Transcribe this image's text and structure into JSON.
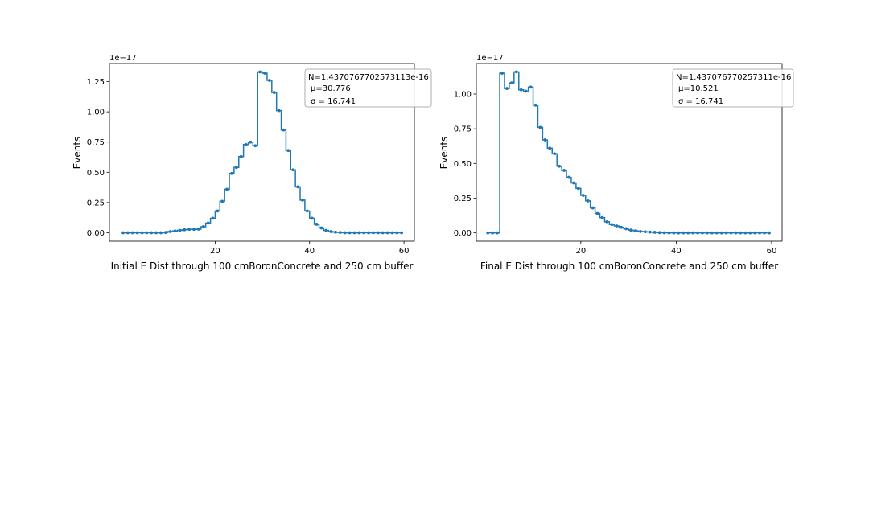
{
  "colors": {
    "series": "#1f77b4",
    "axes": "#000000",
    "background": "#ffffff",
    "legend_border": "#999999"
  },
  "chart_data": [
    {
      "type": "line",
      "title": "",
      "xlabel": "Initial E Dist through 100 cmBoronConcrete and 250 cm buffer",
      "ylabel": "Events",
      "offset_text": "1e−17",
      "xlim": [
        -2.4,
        62.2
      ],
      "ylim": [
        -0.07,
        1.4
      ],
      "xticks": [
        20,
        40,
        60
      ],
      "xtick_labels": [
        "20",
        "40",
        "60"
      ],
      "yticks": [
        0,
        0.25,
        0.5,
        0.75,
        1.0,
        1.25
      ],
      "ytick_labels": [
        "0.00",
        "0.25",
        "0.50",
        "0.75",
        "1.00",
        "1.25"
      ],
      "legend": {
        "placement": "top-right",
        "lines": [
          "N=1.4370767702573113e-16",
          "μ=30.776",
          "σ = 16.741"
        ]
      },
      "series": [
        {
          "name": "Initial E",
          "style": "steps-mid with point markers",
          "x": [
            0.5,
            1.5,
            2.5,
            3.5,
            4.5,
            5.5,
            6.5,
            7.5,
            8.5,
            9.5,
            10.5,
            11.5,
            12.5,
            13.5,
            14.5,
            15.5,
            16.5,
            17.5,
            18.5,
            19.5,
            20.5,
            21.5,
            22.5,
            23.5,
            24.5,
            25.5,
            26.5,
            27.5,
            28.5,
            29.5,
            30.5,
            31.5,
            32.5,
            33.5,
            34.5,
            35.5,
            36.5,
            37.5,
            38.5,
            39.5,
            40.5,
            41.5,
            42.5,
            43.5,
            44.5,
            45.5,
            46.5,
            47.5,
            48.5,
            49.5,
            50.5,
            51.5,
            52.5,
            53.5,
            54.5,
            55.5,
            56.5,
            57.5,
            58.5,
            59.5
          ],
          "y": [
            0,
            0,
            0,
            0,
            0,
            0,
            0,
            0,
            0,
            0.002,
            0.01,
            0.015,
            0.02,
            0.025,
            0.028,
            0.028,
            0.03,
            0.05,
            0.08,
            0.12,
            0.18,
            0.26,
            0.36,
            0.49,
            0.54,
            0.63,
            0.73,
            0.75,
            0.72,
            1.33,
            1.32,
            1.26,
            1.16,
            1.01,
            0.85,
            0.68,
            0.52,
            0.38,
            0.27,
            0.18,
            0.12,
            0.07,
            0.04,
            0.02,
            0.01,
            0.005,
            0.002,
            0,
            0,
            0,
            0,
            0,
            0,
            0,
            0,
            0,
            0,
            0,
            0,
            0
          ]
        }
      ]
    },
    {
      "type": "line",
      "title": "",
      "xlabel": "Final E Dist through 100 cmBoronConcrete and 250 cm buffer",
      "ylabel": "Events",
      "offset_text": "1e−17",
      "xlim": [
        -1.9,
        62.2
      ],
      "ylim": [
        -0.06,
        1.22
      ],
      "xticks": [
        20,
        40,
        60
      ],
      "xtick_labels": [
        "20",
        "40",
        "60"
      ],
      "yticks": [
        0,
        0.25,
        0.5,
        0.75,
        1.0
      ],
      "ytick_labels": [
        "0.00",
        "0.25",
        "0.50",
        "0.75",
        "1.00"
      ],
      "legend": {
        "placement": "top-right",
        "lines": [
          "N=1.437076770257311e-16",
          "μ=10.521",
          "σ = 16.741"
        ]
      },
      "series": [
        {
          "name": "Final E",
          "style": "steps-mid with point markers",
          "x": [
            0.5,
            1.5,
            2.5,
            3.5,
            4.5,
            5.5,
            6.5,
            7.5,
            8.5,
            9.5,
            10.5,
            11.5,
            12.5,
            13.5,
            14.5,
            15.5,
            16.5,
            17.5,
            18.5,
            19.5,
            20.5,
            21.5,
            22.5,
            23.5,
            24.5,
            25.5,
            26.5,
            27.5,
            28.5,
            29.5,
            30.5,
            31.5,
            32.5,
            33.5,
            34.5,
            35.5,
            36.5,
            37.5,
            38.5,
            39.5,
            40.5,
            41.5,
            42.5,
            43.5,
            44.5,
            45.5,
            46.5,
            47.5,
            48.5,
            49.5,
            50.5,
            51.5,
            52.5,
            53.5,
            54.5,
            55.5,
            56.5,
            57.5,
            58.5,
            59.5
          ],
          "y": [
            0,
            0,
            0,
            1.15,
            1.04,
            1.08,
            1.16,
            1.03,
            1.02,
            1.05,
            0.92,
            0.76,
            0.67,
            0.61,
            0.57,
            0.48,
            0.45,
            0.4,
            0.36,
            0.32,
            0.27,
            0.23,
            0.18,
            0.14,
            0.11,
            0.08,
            0.06,
            0.05,
            0.04,
            0.03,
            0.02,
            0.015,
            0.01,
            0.008,
            0.006,
            0.004,
            0.002,
            0.001,
            0,
            0,
            0,
            0,
            0,
            0,
            0,
            0,
            0,
            0,
            0,
            0,
            0,
            0,
            0,
            0,
            0,
            0,
            0,
            0,
            0,
            0
          ]
        }
      ]
    }
  ]
}
